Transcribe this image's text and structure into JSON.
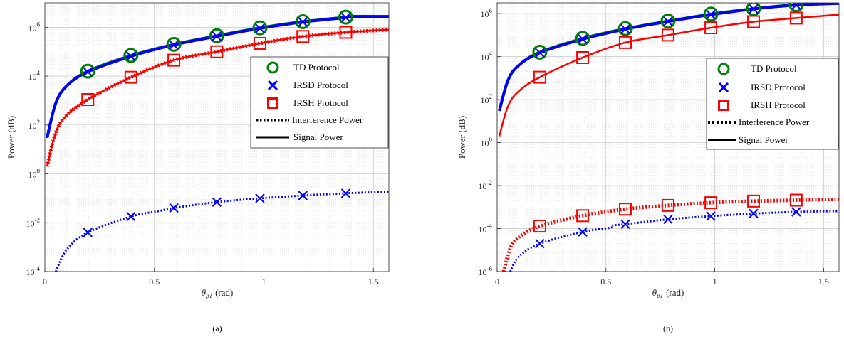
{
  "chart_data": [
    {
      "type": "line",
      "caption": "(a)",
      "xlabel": "θ_p1 (rad)",
      "xlabel_main": "θ",
      "xlabel_sub": "p1",
      "xlabel_unit": "(rad)",
      "ylabel": "Power (dB)",
      "yscale": "log",
      "xlim": [
        0,
        1.5708
      ],
      "ylim_exp": [
        -4,
        7
      ],
      "xticks": [
        "0",
        "0.5",
        "1",
        "1.5"
      ],
      "yticks": [
        "10",
        "10",
        "10",
        "10",
        "10",
        "10"
      ],
      "ytick_exps": [
        "-4",
        "-2",
        "0",
        "2",
        "4",
        "6"
      ],
      "grid": true,
      "legend_position": "right",
      "legend": {
        "td": "TD Protocol",
        "irsd": "IRSD Protocol",
        "irsh": "IRSH Protocol",
        "interference": "Interference Power",
        "signal": "Signal Power"
      },
      "marker_x": [
        0.196,
        0.393,
        0.589,
        0.785,
        0.982,
        1.178,
        1.374
      ],
      "series": [
        {
          "protocol": "TD",
          "kind": "signal",
          "color": "#008000",
          "x": [
            0.01,
            0.05,
            0.1,
            0.196,
            0.393,
            0.589,
            0.785,
            0.982,
            1.178,
            1.374,
            1.4,
            1.571
          ],
          "y": [
            30,
            800,
            4000,
            16000,
            70000,
            200000,
            450000,
            950000,
            1700000,
            2600000,
            2800000,
            2800000
          ]
        },
        {
          "protocol": "IRSD",
          "kind": "signal",
          "color": "#0000ff",
          "x": [
            0.01,
            0.05,
            0.1,
            0.196,
            0.393,
            0.589,
            0.785,
            0.982,
            1.178,
            1.374,
            1.4,
            1.571
          ],
          "y": [
            30,
            800,
            4000,
            15000,
            65000,
            190000,
            430000,
            900000,
            1650000,
            2500000,
            2700000,
            2700000
          ]
        },
        {
          "protocol": "IRSH",
          "kind": "signal",
          "color": "#ff0000",
          "x": [
            0.01,
            0.05,
            0.1,
            0.196,
            0.393,
            0.589,
            0.785,
            0.982,
            1.178,
            1.374,
            1.571
          ],
          "y": [
            2,
            50,
            250,
            1100,
            9000,
            45000,
            100000,
            220000,
            420000,
            620000,
            800000
          ]
        },
        {
          "protocol": "IRSH",
          "kind": "interference",
          "color": "#ff0000",
          "x": [
            0.01,
            0.05,
            0.1,
            0.196,
            0.393,
            0.589,
            0.785,
            0.982,
            1.178,
            1.374,
            1.571
          ],
          "y": [
            2,
            50,
            250,
            1100,
            9000,
            45000,
            100000,
            220000,
            420000,
            620000,
            800000
          ]
        },
        {
          "protocol": "IRSD",
          "kind": "interference",
          "color": "#0000ff",
          "x": [
            0.05,
            0.1,
            0.196,
            0.393,
            0.52,
            0.589,
            0.785,
            0.982,
            1.178,
            1.374,
            1.571
          ],
          "y": [
            0.0001,
            0.0008,
            0.004,
            0.018,
            0.03,
            0.04,
            0.07,
            0.1,
            0.13,
            0.16,
            0.19
          ]
        }
      ],
      "markers": [
        {
          "protocol": "TD",
          "shape": "circle",
          "color": "#008000",
          "y": [
            16000,
            70000,
            200000,
            450000,
            950000,
            1700000,
            2600000
          ]
        },
        {
          "protocol": "IRSD",
          "shape": "x",
          "color": "#0000ff",
          "y": [
            15000,
            65000,
            190000,
            430000,
            900000,
            1650000,
            2500000
          ]
        },
        {
          "protocol": "IRSD",
          "shape": "x",
          "color": "#0000ff",
          "y": [
            0.004,
            0.018,
            0.04,
            0.07,
            0.1,
            0.13,
            0.16
          ]
        },
        {
          "protocol": "IRSH",
          "shape": "square",
          "color": "#ff0000",
          "y": [
            1100,
            9000,
            45000,
            100000,
            220000,
            420000,
            620000
          ]
        }
      ]
    },
    {
      "type": "line",
      "caption": "(b)",
      "xlabel": "θ_p1 (rad)",
      "xlabel_main": "θ",
      "xlabel_sub": "p1",
      "xlabel_unit": "(rad)",
      "ylabel": "Power (dB)",
      "yscale": "log",
      "xlim": [
        0,
        1.5708
      ],
      "ylim_exp": [
        -6,
        6.5
      ],
      "xticks": [
        "0",
        "0.5",
        "1",
        "1.5"
      ],
      "yticks": [
        "10",
        "10",
        "10",
        "10",
        "10",
        "10",
        "10"
      ],
      "ytick_exps": [
        "-6",
        "-4",
        "-2",
        "0",
        "2",
        "4",
        "6"
      ],
      "grid": true,
      "legend_position": "right",
      "legend": {
        "td": "TD Protocol",
        "irsd": "IRSD Protocol",
        "irsh": "IRSH Protocol",
        "interference": "Interference Power",
        "signal": "Signal Power"
      },
      "marker_x": [
        0.196,
        0.393,
        0.589,
        0.785,
        0.982,
        1.178,
        1.374
      ],
      "series": [
        {
          "protocol": "TD",
          "kind": "signal",
          "color": "#008000",
          "x": [
            0.01,
            0.05,
            0.1,
            0.196,
            0.393,
            0.589,
            0.785,
            0.982,
            1.178,
            1.374,
            1.571
          ],
          "y": [
            30,
            800,
            4000,
            16000,
            70000,
            200000,
            450000,
            950000,
            1700000,
            2600000,
            3200000
          ]
        },
        {
          "protocol": "IRSD",
          "kind": "signal",
          "color": "#0000ff",
          "x": [
            0.01,
            0.05,
            0.1,
            0.196,
            0.393,
            0.589,
            0.785,
            0.982,
            1.178,
            1.374,
            1.571
          ],
          "y": [
            30,
            800,
            4000,
            15000,
            65000,
            190000,
            430000,
            900000,
            1650000,
            2500000,
            3000000
          ]
        },
        {
          "protocol": "IRSH",
          "kind": "signal",
          "color": "#ff0000",
          "x": [
            0.01,
            0.05,
            0.1,
            0.196,
            0.393,
            0.589,
            0.785,
            0.982,
            1.178,
            1.374,
            1.571
          ],
          "y": [
            2,
            50,
            250,
            1100,
            9000,
            45000,
            100000,
            220000,
            420000,
            620000,
            900000
          ]
        },
        {
          "protocol": "IRSH",
          "kind": "interference",
          "color": "#ff0000",
          "x": [
            0.03,
            0.06,
            0.1,
            0.196,
            0.393,
            0.589,
            0.785,
            0.982,
            1.178,
            1.374,
            1.571
          ],
          "y": [
            1e-06,
            1.2e-05,
            4e-05,
            0.00013,
            0.0004,
            0.0008,
            0.0012,
            0.0016,
            0.0019,
            0.0021,
            0.0023
          ]
        },
        {
          "protocol": "IRSD",
          "kind": "interference",
          "color": "#0000ff",
          "x": [
            0.06,
            0.1,
            0.196,
            0.393,
            0.52,
            0.53,
            0.589,
            0.785,
            0.982,
            1.178,
            1.374,
            1.571
          ],
          "y": [
            1e-06,
            5e-06,
            2e-05,
            7e-05,
            0.00011,
            0.00014,
            0.00016,
            0.00027,
            0.00038,
            0.0005,
            0.0006,
            0.00065
          ]
        }
      ],
      "markers": [
        {
          "protocol": "TD",
          "shape": "circle",
          "color": "#008000",
          "y": [
            16000,
            70000,
            200000,
            450000,
            950000,
            1700000,
            2600000
          ]
        },
        {
          "protocol": "IRSD",
          "shape": "x",
          "color": "#0000ff",
          "y": [
            15000,
            65000,
            190000,
            430000,
            900000,
            1650000,
            2500000
          ]
        },
        {
          "protocol": "IRSH",
          "shape": "square",
          "color": "#ff0000",
          "y": [
            1100,
            9000,
            45000,
            100000,
            220000,
            420000,
            620000
          ]
        },
        {
          "protocol": "IRSD",
          "shape": "x",
          "color": "#0000ff",
          "y": [
            2e-05,
            7e-05,
            0.00016,
            0.00027,
            0.00038,
            0.0005,
            0.0006
          ]
        },
        {
          "protocol": "IRSH",
          "shape": "square",
          "color": "#ff0000",
          "y": [
            0.00013,
            0.0004,
            0.0008,
            0.0012,
            0.0016,
            0.0019,
            0.0021
          ]
        }
      ]
    }
  ]
}
